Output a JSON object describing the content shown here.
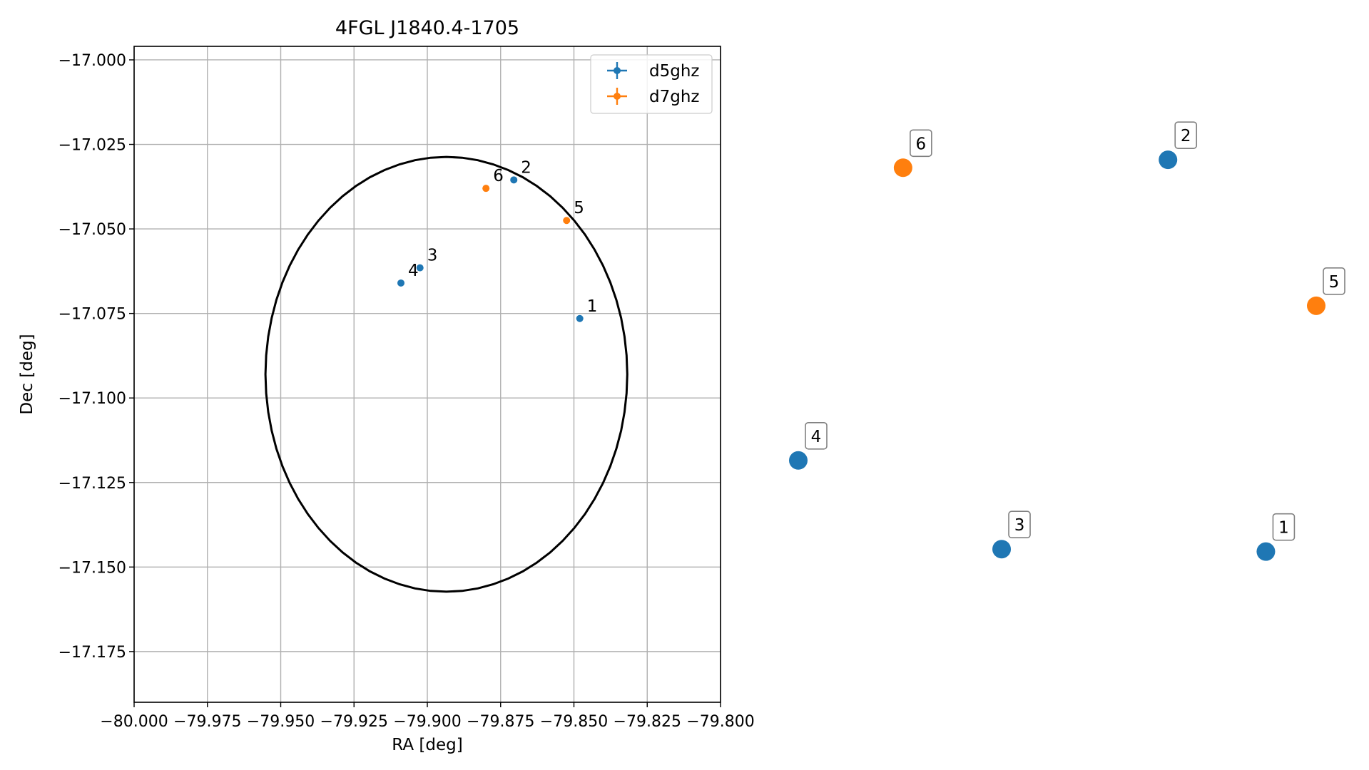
{
  "chart_data": [
    {
      "type": "scatter",
      "title": "4FGL J1840.4-1705",
      "xlabel": "RA [deg]",
      "ylabel": "Dec [deg]",
      "xlim": [
        -80.0,
        -79.8
      ],
      "ylim": [
        -17.19,
        -16.996
      ],
      "grid": true,
      "legend_position": "top-right",
      "x_ticks": [
        "−80.000",
        "−79.975",
        "−79.950",
        "−79.925",
        "−79.900",
        "−79.875",
        "−79.850",
        "−79.825",
        "−79.800"
      ],
      "x_tick_values": [
        -80.0,
        -79.975,
        -79.95,
        -79.925,
        -79.9,
        -79.875,
        -79.85,
        -79.825,
        -79.8
      ],
      "y_ticks": [
        "−17.000",
        "−17.025",
        "−17.050",
        "−17.075",
        "−17.100",
        "−17.125",
        "−17.150",
        "−17.175"
      ],
      "y_tick_values": [
        -17.0,
        -17.025,
        -17.05,
        -17.075,
        -17.1,
        -17.125,
        -17.15,
        -17.175
      ],
      "ellipse": {
        "center_ra": -79.8935,
        "center_dec": -17.093,
        "semi_ra": 0.0617,
        "semi_dec": 0.0643,
        "color": "#000000"
      },
      "series": [
        {
          "name": "d5ghz",
          "color": "#1f77b4",
          "points": [
            {
              "label": "1",
              "x": -79.848,
              "y": -17.0765
            },
            {
              "label": "2",
              "x": -79.8705,
              "y": -17.0355
            },
            {
              "label": "3",
              "x": -79.9025,
              "y": -17.0615
            },
            {
              "label": "4",
              "x": -79.909,
              "y": -17.066
            }
          ]
        },
        {
          "name": "d7ghz",
          "color": "#ff7f0e",
          "points": [
            {
              "label": "5",
              "x": -79.8525,
              "y": -17.0475
            },
            {
              "label": "6",
              "x": -79.88,
              "y": -17.038
            }
          ]
        }
      ]
    },
    {
      "type": "scatter",
      "grid": false,
      "series": [
        {
          "name": "",
          "color": "#1f77b4",
          "points": [
            {
              "label": "1",
              "x": 0.9028,
              "y": 0.1062
            },
            {
              "label": "2",
              "x": 0.7138,
              "y": 0.8912
            },
            {
              "label": "3",
              "x": 0.3926,
              "y": 0.1111
            },
            {
              "label": "4",
              "x": 0.0,
              "y": 0.2889
            }
          ]
        },
        {
          "name": "",
          "color": "#ff7f0e",
          "points": [
            {
              "label": "5",
              "x": 1.0,
              "y": 0.5988
            },
            {
              "label": "6",
              "x": 0.2023,
              "y": 0.8753
            }
          ]
        }
      ]
    }
  ]
}
